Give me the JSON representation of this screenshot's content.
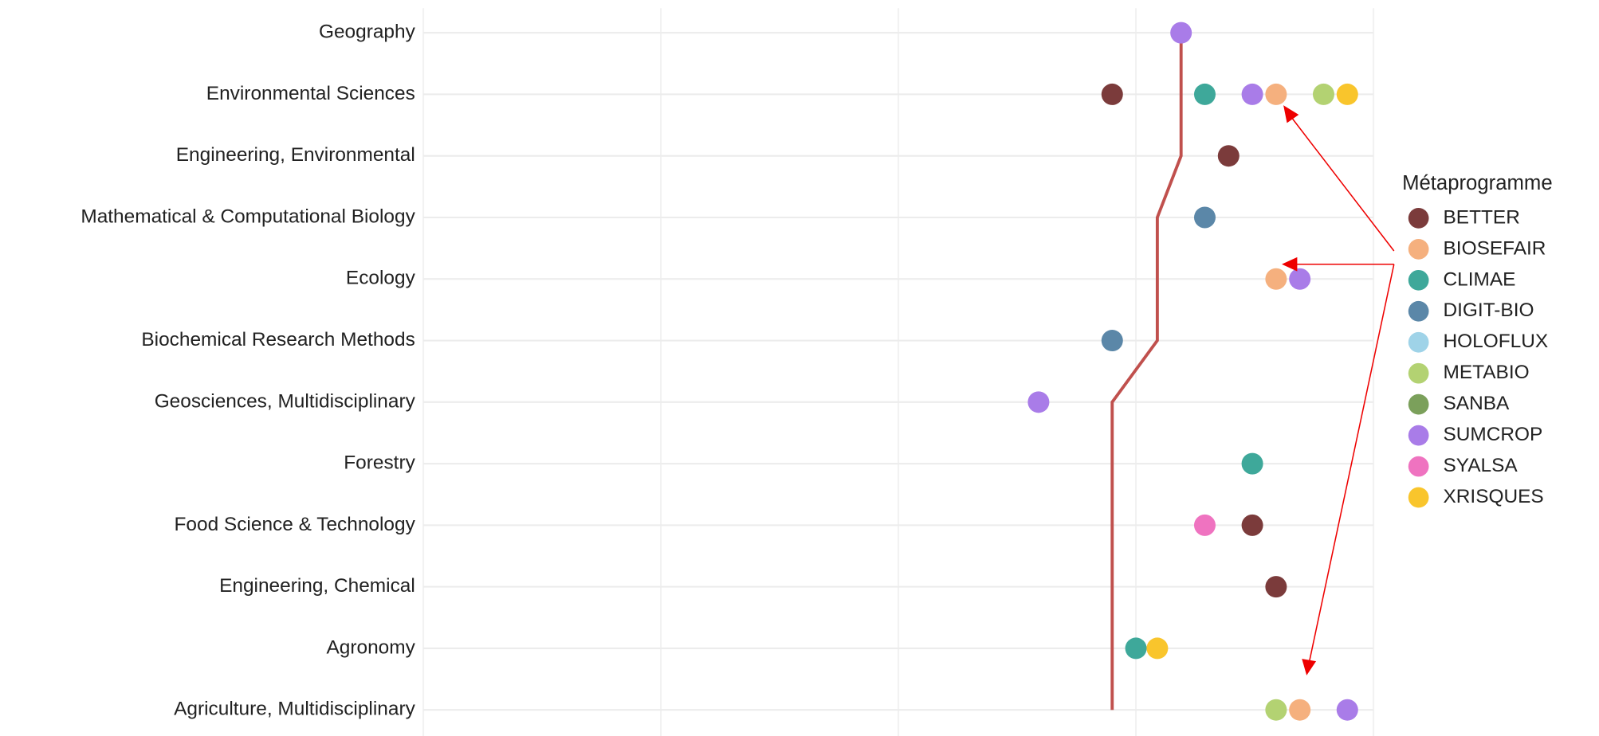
{
  "chart_data": {
    "type": "dot",
    "categories": [
      "Geography",
      "Environmental Sciences",
      "Engineering, Environmental",
      "Mathematical & Computational Biology",
      "Ecology",
      "Biochemical Research Methods",
      "Geosciences, Multidisciplinary",
      "Forestry",
      "Food Science & Technology",
      "Engineering, Chemical",
      "Agronomy",
      "Agriculture, Multidisciplinary"
    ],
    "xlim": [
      0,
      4
    ],
    "xgrid": [
      0,
      1,
      2,
      3,
      4
    ],
    "grid": true,
    "legend_title": "Métaprogramme",
    "legend": "right",
    "series": [
      {
        "name": "BETTER",
        "color": "#7b3b3b",
        "values": [
          null,
          2.9,
          3.39,
          null,
          null,
          null,
          null,
          null,
          3.49,
          3.59,
          null,
          null
        ]
      },
      {
        "name": "BIOSEFAIR",
        "color": "#f5b07e",
        "values": [
          null,
          3.59,
          null,
          null,
          3.59,
          null,
          null,
          null,
          null,
          null,
          null,
          3.69
        ]
      },
      {
        "name": "CLIMAE",
        "color": "#3ea89a",
        "values": [
          null,
          3.29,
          null,
          null,
          null,
          null,
          null,
          3.49,
          null,
          null,
          3.0,
          null
        ]
      },
      {
        "name": "DIGIT-BIO",
        "color": "#5b87a8",
        "values": [
          null,
          null,
          null,
          3.29,
          null,
          2.9,
          null,
          null,
          null,
          null,
          null,
          null
        ]
      },
      {
        "name": "HOLOFLUX",
        "color": "#9fd3e8",
        "values": [
          null,
          null,
          null,
          null,
          null,
          null,
          null,
          null,
          null,
          null,
          null,
          null
        ]
      },
      {
        "name": "METABIO",
        "color": "#b3d272",
        "values": [
          null,
          3.79,
          null,
          null,
          null,
          null,
          null,
          null,
          null,
          null,
          null,
          3.59
        ]
      },
      {
        "name": "SANBA",
        "color": "#7ba05b",
        "values": [
          null,
          null,
          null,
          null,
          null,
          null,
          null,
          null,
          null,
          null,
          null,
          null
        ]
      },
      {
        "name": "SUMCROP",
        "color": "#a97ce8",
        "values": [
          3.19,
          3.49,
          null,
          null,
          3.69,
          null,
          2.59,
          null,
          null,
          null,
          null,
          3.89
        ]
      },
      {
        "name": "SYALSA",
        "color": "#ef73c0",
        "values": [
          null,
          null,
          null,
          null,
          null,
          null,
          null,
          null,
          3.29,
          null,
          null,
          null
        ]
      },
      {
        "name": "XRISQUES",
        "color": "#f9c52c",
        "values": [
          null,
          3.89,
          null,
          null,
          null,
          null,
          null,
          null,
          null,
          null,
          3.09,
          null
        ]
      }
    ],
    "reference_line": {
      "color": "#c0504d",
      "values": [
        3.19,
        3.19,
        3.19,
        3.09,
        3.09,
        3.09,
        2.9,
        2.9,
        2.9,
        2.9,
        2.9,
        2.9
      ]
    }
  }
}
